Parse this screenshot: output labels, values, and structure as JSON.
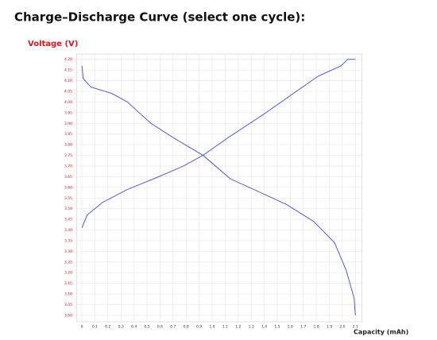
{
  "chart_data": {
    "type": "line",
    "title": "Charge–Discharge Curve (select one cycle):",
    "y_label": "Voltage (V)",
    "x_label": "Capacity (mAh)",
    "xlim": [
      -0.04,
      2.15
    ],
    "ylim": [
      2.97,
      4.225
    ],
    "grid": true,
    "xticks": [
      0,
      0.1,
      0.2,
      0.3,
      0.4,
      0.5,
      0.6,
      0.7,
      0.8,
      0.9,
      {
        "value": 1,
        "label": "1.0"
      },
      1.1,
      1.2,
      1.3,
      1.4,
      1.5,
      1.6,
      1.7,
      1.8,
      1.9,
      {
        "value": 2,
        "label": "2.0"
      },
      2.1
    ],
    "yticks": [
      {
        "value": 3,
        "label": "3.00"
      },
      3.05,
      {
        "value": 3.1,
        "label": "3.10"
      },
      3.15,
      {
        "value": 3.2,
        "label": "3.20"
      },
      3.25,
      {
        "value": 3.3,
        "label": "3.30"
      },
      3.35,
      {
        "value": 3.4,
        "label": "3.40"
      },
      3.45,
      {
        "value": 3.5,
        "label": "3.50"
      },
      3.55,
      {
        "value": 3.6,
        "label": "3.60"
      },
      3.65,
      {
        "value": 3.7,
        "label": "3.70"
      },
      3.75,
      {
        "value": 3.8,
        "label": "3.80"
      },
      3.85,
      {
        "value": 3.9,
        "label": "3.90"
      },
      3.95,
      {
        "value": 4,
        "label": "4.00"
      },
      4.05,
      {
        "value": 4.1,
        "label": "4.10"
      },
      4.15,
      {
        "value": 4.2,
        "label": "4.20"
      }
    ],
    "series": [
      {
        "color": "#3c4be0",
        "x": [
          0,
          0.04,
          0.16,
          0.35,
          0.59,
          0.78,
          0.93,
          1.14,
          1.39,
          1.6,
          1.81,
          1.99,
          2.04,
          2.1
        ],
        "values": [
          3.41,
          3.47,
          3.53,
          3.59,
          3.65,
          3.7,
          3.75,
          3.84,
          3.94,
          4.03,
          4.12,
          4.17,
          4.2,
          4.2
        ]
      },
      {
        "color": "#3c4be0",
        "x": [
          0,
          0.01,
          0.07,
          0.23,
          0.35,
          0.53,
          0.71,
          0.93,
          1.14,
          1.32,
          1.57,
          1.78,
          1.94,
          2.03,
          2.09,
          2.1
        ],
        "values": [
          4.17,
          4.11,
          4.07,
          4.04,
          4.0,
          3.9,
          3.83,
          3.75,
          3.64,
          3.59,
          3.52,
          3.44,
          3.34,
          3.21,
          3.08,
          3.0
        ]
      }
    ]
  }
}
